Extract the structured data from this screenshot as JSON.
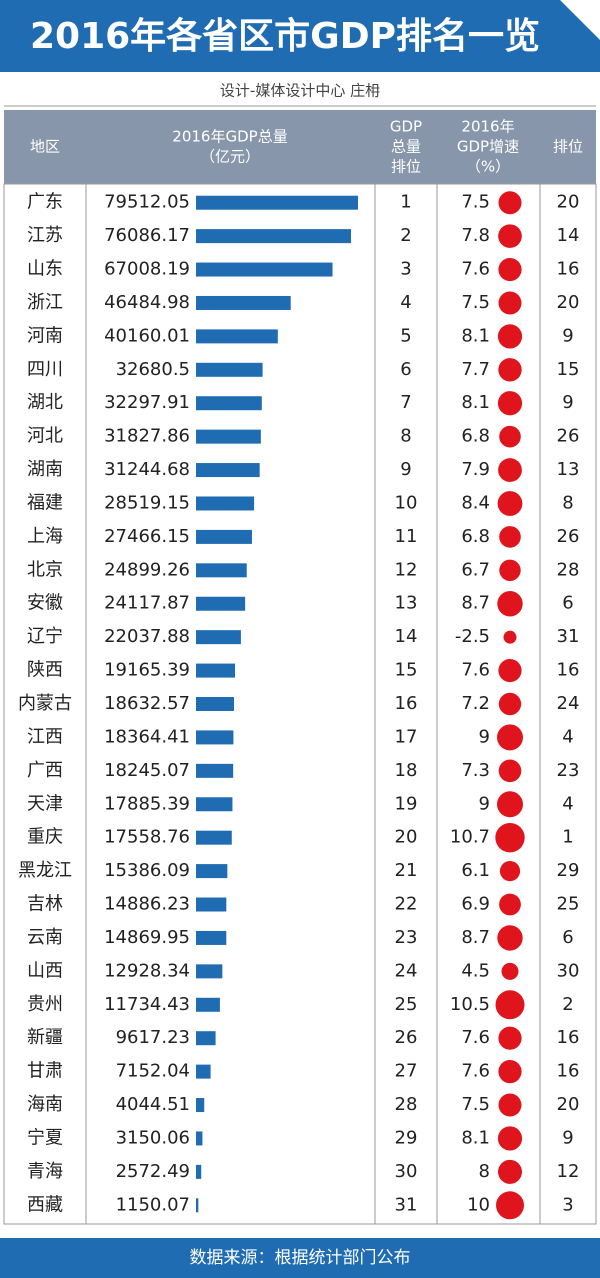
{
  "title": "2016年各省区市GDP排名一览",
  "subtitle": "设计-媒体设计中心  庄枏",
  "header": {
    "region": "地区",
    "gdp": [
      "2016年GDP总量",
      "（亿元）"
    ],
    "gdp_rank": [
      "GDP",
      "总量",
      "排位"
    ],
    "growth": [
      "2016年",
      "GDP增速",
      "（%）"
    ],
    "growth_rank": "排位"
  },
  "rows": [
    [
      "广东",
      79512.05,
      1,
      7.5,
      20
    ],
    [
      "江苏",
      76086.17,
      2,
      7.8,
      14
    ],
    [
      "山东",
      67008.19,
      3,
      7.6,
      16
    ],
    [
      "浙江",
      46484.98,
      4,
      7.5,
      20
    ],
    [
      "河南",
      40160.01,
      5,
      8.1,
      9
    ],
    [
      "四川",
      32680.5,
      6,
      7.7,
      15
    ],
    [
      "湖北",
      32297.91,
      7,
      8.1,
      9
    ],
    [
      "河北",
      31827.86,
      8,
      6.8,
      26
    ],
    [
      "湖南",
      31244.68,
      9,
      7.9,
      13
    ],
    [
      "福建",
      28519.15,
      10,
      8.4,
      8
    ],
    [
      "上海",
      27466.15,
      11,
      6.8,
      26
    ],
    [
      "北京",
      24899.26,
      12,
      6.7,
      28
    ],
    [
      "安徽",
      24117.87,
      13,
      8.7,
      6
    ],
    [
      "辽宁",
      22037.88,
      14,
      -2.5,
      31
    ],
    [
      "陕西",
      19165.39,
      15,
      7.6,
      16
    ],
    [
      "内蒙古",
      18632.57,
      16,
      7.2,
      24
    ],
    [
      "江西",
      18364.41,
      17,
      9,
      4
    ],
    [
      "广西",
      18245.07,
      18,
      7.3,
      23
    ],
    [
      "天津",
      17885.39,
      19,
      9,
      4
    ],
    [
      "重庆",
      17558.76,
      20,
      10.7,
      1
    ],
    [
      "黑龙江",
      15386.09,
      21,
      6.1,
      29
    ],
    [
      "吉林",
      14886.23,
      22,
      6.9,
      25
    ],
    [
      "云南",
      14869.95,
      23,
      8.7,
      6
    ],
    [
      "山西",
      12928.34,
      24,
      4.5,
      30
    ],
    [
      "贵州",
      11734.43,
      25,
      10.5,
      2
    ],
    [
      "新疆",
      9617.23,
      26,
      7.6,
      16
    ],
    [
      "甘肃",
      7152.04,
      27,
      7.6,
      16
    ],
    [
      "海南",
      4044.51,
      28,
      7.5,
      20
    ],
    [
      "宁夏",
      3150.06,
      29,
      8.1,
      9
    ],
    [
      "青海",
      2572.49,
      30,
      8,
      12
    ],
    [
      "西藏",
      1150.07,
      31,
      10,
      3
    ]
  ],
  "source": "数据来源：根据统计部门公布"
}
